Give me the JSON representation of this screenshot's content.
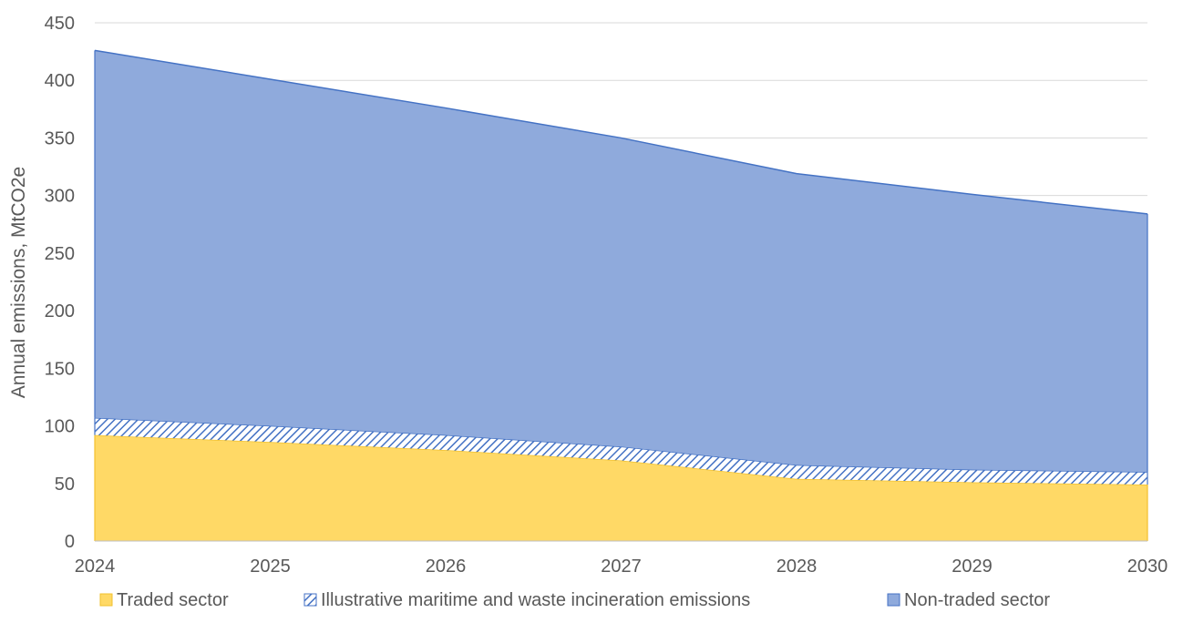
{
  "chart_data": {
    "type": "area",
    "stacked": true,
    "title": "",
    "xlabel": "",
    "ylabel": "Annual emissions, MtCO2e",
    "x": [
      "2024",
      "2025",
      "2026",
      "2027",
      "2028",
      "2029",
      "2030"
    ],
    "ylim": [
      0,
      450
    ],
    "yticks": [
      0,
      50,
      100,
      150,
      200,
      250,
      300,
      350,
      400,
      450
    ],
    "grid": "horizontal",
    "legend_position": "bottom",
    "series": [
      {
        "name": "Traded sector",
        "values": [
          92,
          86,
          79,
          70,
          54,
          51,
          49
        ],
        "color": "#FFD966",
        "pattern": "solid"
      },
      {
        "name": "Illustrative maritime and waste incineration emissions",
        "values": [
          15,
          14,
          13,
          12,
          12,
          11,
          11
        ],
        "color": "#4472C4",
        "pattern": "diagonal-hatch"
      },
      {
        "name": "Non-traded sector",
        "values": [
          319,
          301,
          284,
          268,
          253,
          239,
          224
        ],
        "color": "#8FAADC",
        "pattern": "solid"
      }
    ]
  }
}
